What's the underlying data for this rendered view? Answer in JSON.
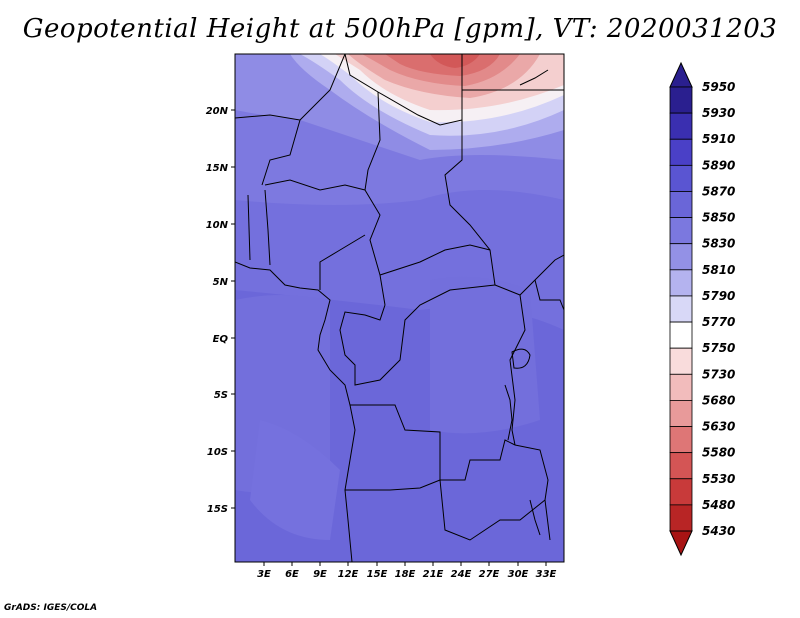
{
  "title": "Geopotential Height at 500hPa [gpm], VT: 2020031203",
  "credit": "GrADS: IGES/COLA",
  "map": {
    "lat_ticks": [
      "20N",
      "15N",
      "10N",
      "5N",
      "EQ",
      "5S",
      "10S",
      "15S"
    ],
    "lon_ticks": [
      "3E",
      "6E",
      "9E",
      "12E",
      "15E",
      "18E",
      "21E",
      "24E",
      "27E",
      "30E",
      "33E"
    ]
  },
  "colorbar": {
    "labels": [
      "5950",
      "5930",
      "5910",
      "5890",
      "5870",
      "5850",
      "5830",
      "5810",
      "5790",
      "5770",
      "5750",
      "5730",
      "5680",
      "5630",
      "5580",
      "5530",
      "5480",
      "5430"
    ],
    "colors": [
      "#2a1f8f",
      "#3a2fb0",
      "#4a40c7",
      "#5a55d2",
      "#6a66d8",
      "#7b78df",
      "#9391e6",
      "#b4b3ef",
      "#d8d8f7",
      "#ffffff",
      "#f9dcdc",
      "#f2bcbc",
      "#e89a9a",
      "#de7676",
      "#d45555",
      "#c83a3a",
      "#b82525",
      "#a81414"
    ]
  },
  "colors": {
    "ocean_base": "#6b67d9",
    "land_mid": "#7d79e0",
    "high_north": "#9f9ce9",
    "boundary": "#000000"
  }
}
